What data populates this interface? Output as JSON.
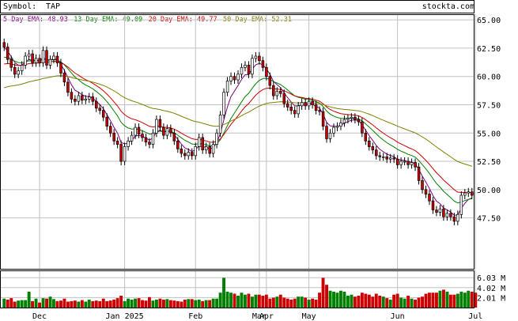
{
  "header": {
    "symbol_label": "Symbol:",
    "symbol": "TAP",
    "site": "stockta.com"
  },
  "legend": [
    {
      "label": "5 Day EMA:",
      "value": "48.93",
      "color": "#800080"
    },
    {
      "label": "13 Day EMA:",
      "value": "49.09",
      "color": "#008000"
    },
    {
      "label": "20 Day EMA:",
      "value": "49.77",
      "color": "#cc0000"
    },
    {
      "label": "50 Day EMA:",
      "value": "52.31",
      "color": "#808000"
    }
  ],
  "colors": {
    "up": "#008000",
    "down": "#cc0000",
    "grid": "#c0c0c0",
    "axis": "#000000",
    "candle_outline": "#000000"
  },
  "chart_data": {
    "type": "candlestick",
    "symbol": "TAP",
    "price_axis": {
      "ylim": [
        43.0,
        65.5
      ],
      "ticks": [
        "65.00",
        "62.50",
        "60.00",
        "57.50",
        "55.00",
        "52.50",
        "50.00",
        "47.50"
      ]
    },
    "volume_axis": {
      "ylim": [
        0,
        7.5
      ],
      "ticks": [
        "6.03 M",
        "4.02 M",
        "2.01 M"
      ]
    },
    "x_labels": [
      {
        "label": "Dec",
        "index": 10
      },
      {
        "label": "Jan 2025",
        "index": 34
      },
      {
        "label": "Feb",
        "index": 54
      },
      {
        "label": "Mar",
        "index": 72
      },
      {
        "label": "Apr",
        "index": 74
      },
      {
        "label": "May",
        "index": 86
      },
      {
        "label": "Jun",
        "index": 111
      },
      {
        "label": "Jul",
        "index": 133
      }
    ],
    "close": [
      62.6,
      61.5,
      60.8,
      60.2,
      60.5,
      61.0,
      61.8,
      62.0,
      61.2,
      61.6,
      61.2,
      62.3,
      61.0,
      61.5,
      61.8,
      61.2,
      60.3,
      59.5,
      58.6,
      58.0,
      57.8,
      58.3,
      57.9,
      58.0,
      58.2,
      57.8,
      57.2,
      57.0,
      56.4,
      55.6,
      55.0,
      54.3,
      54.0,
      52.5,
      53.8,
      54.3,
      54.8,
      55.5,
      54.9,
      54.6,
      54.2,
      54.0,
      55.0,
      56.2,
      55.5,
      54.8,
      55.4,
      55.0,
      54.3,
      53.6,
      53.2,
      53.0,
      53.3,
      53.0,
      53.8,
      54.6,
      53.5,
      53.8,
      53.2,
      54.0,
      55.0,
      56.6,
      58.6,
      59.6,
      60.0,
      59.7,
      60.2,
      60.8,
      61.0,
      60.2,
      61.6,
      61.8,
      61.4,
      60.8,
      60.0,
      59.2,
      58.3,
      58.7,
      58.5,
      57.6,
      57.3,
      57.0,
      56.7,
      57.4,
      57.7,
      57.4,
      57.8,
      57.5,
      57.0,
      56.9,
      55.6,
      54.5,
      55.0,
      55.5,
      55.6,
      55.9,
      56.2,
      56.3,
      56.4,
      56.2,
      56.0,
      55.0,
      54.3,
      53.8,
      53.5,
      53.0,
      52.9,
      52.9,
      52.7,
      52.8,
      52.7,
      52.2,
      52.5,
      52.5,
      52.2,
      52.4,
      52.0,
      50.8,
      50.0,
      49.6,
      49.0,
      48.2,
      48.0,
      48.3,
      47.6,
      47.9,
      47.6,
      47.2,
      47.8,
      49.5,
      49.7,
      49.8,
      49.5
    ],
    "volume_millions": [
      1.8,
      1.6,
      1.9,
      1.2,
      1.4,
      1.5,
      1.5,
      3.2,
      1.3,
      1.8,
      1.0,
      1.9,
      1.8,
      2.2,
      1.7,
      1.3,
      1.4,
      1.8,
      1.2,
      1.3,
      1.4,
      1.2,
      1.5,
      1.2,
      1.6,
      1.3,
      1.4,
      1.3,
      1.8,
      1.3,
      1.4,
      1.6,
      1.9,
      2.4,
      1.3,
      1.8,
      1.6,
      1.8,
      1.9,
      1.5,
      1.4,
      2.1,
      1.4,
      1.6,
      1.8,
      1.6,
      1.7,
      1.5,
      1.4,
      1.3,
      1.2,
      1.6,
      1.7,
      1.7,
      1.5,
      1.6,
      1.3,
      1.5,
      1.5,
      1.8,
      1.8,
      3.0,
      6.0,
      3.2,
      3.0,
      2.8,
      2.4,
      3.0,
      2.6,
      2.8,
      2.2,
      2.6,
      2.6,
      2.4,
      2.6,
      1.8,
      2.0,
      2.2,
      2.6,
      2.0,
      1.8,
      1.6,
      1.8,
      2.2,
      2.2,
      2.0,
      1.6,
      1.8,
      1.6,
      3.0,
      6.0,
      4.6,
      3.4,
      3.2,
      3.0,
      3.4,
      3.2,
      2.4,
      2.6,
      2.2,
      2.4,
      3.0,
      2.8,
      2.6,
      2.2,
      2.8,
      2.4,
      2.2,
      1.9,
      1.6,
      2.6,
      2.8,
      2.0,
      1.8,
      2.4,
      1.8,
      1.6,
      2.0,
      2.2,
      2.8,
      3.0,
      3.0,
      3.0,
      3.4,
      3.6,
      3.2,
      2.6,
      2.6,
      2.8,
      3.2,
      3.0,
      3.4,
      3.2,
      3.0
    ]
  }
}
